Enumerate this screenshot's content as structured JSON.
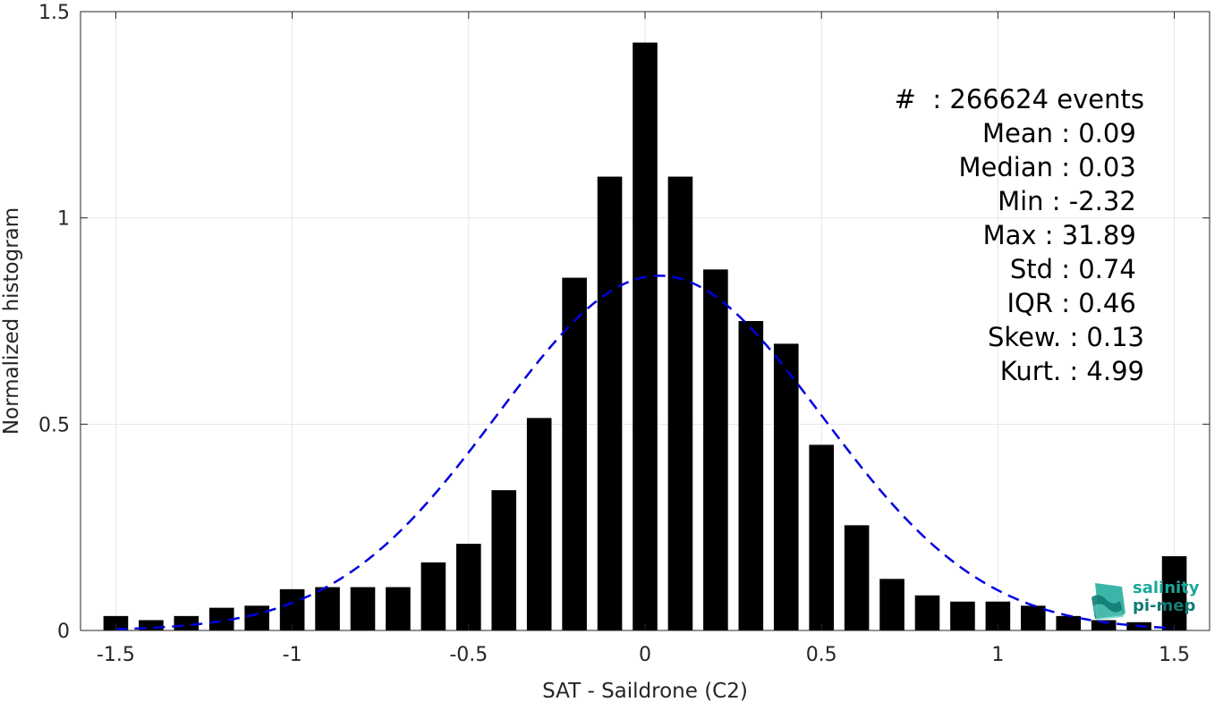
{
  "chart_data": {
    "type": "bar",
    "xlabel": "SAT - Saildrone (C2)",
    "ylabel": "Normalized histogram",
    "xlim": [
      -1.6,
      1.6
    ],
    "ylim": [
      0,
      1.5
    ],
    "xticks": [
      -1.5,
      -1,
      -0.5,
      0,
      0.5,
      1,
      1.5
    ],
    "xtick_labels": [
      "-1.5",
      "-1",
      "-0.5",
      "0",
      "0.5",
      "1",
      "1.5"
    ],
    "yticks": [
      0,
      0.5,
      1,
      1.5
    ],
    "ytick_labels": [
      "0",
      "0.5",
      "1",
      "1.5"
    ],
    "grid": true,
    "bin_width": 0.1,
    "x": [
      -1.5,
      -1.4,
      -1.3,
      -1.2,
      -1.1,
      -1.0,
      -0.9,
      -0.8,
      -0.7,
      -0.6,
      -0.5,
      -0.4,
      -0.3,
      -0.2,
      -0.1,
      0.0,
      0.1,
      0.2,
      0.3,
      0.4,
      0.5,
      0.6,
      0.7,
      0.8,
      0.9,
      1.0,
      1.1,
      1.2,
      1.3,
      1.4,
      1.5
    ],
    "values": [
      0.035,
      0.025,
      0.035,
      0.055,
      0.06,
      0.1,
      0.105,
      0.105,
      0.105,
      0.165,
      0.21,
      0.34,
      0.515,
      0.855,
      1.1,
      1.425,
      1.1,
      0.875,
      0.75,
      0.695,
      0.45,
      0.255,
      0.125,
      0.085,
      0.07,
      0.07,
      0.06,
      0.035,
      0.025,
      0.02,
      0.18
    ],
    "bar_color": "#000000",
    "fit": {
      "style": "dashed",
      "color": "#0000dd",
      "mean": 0.04,
      "std": 0.46,
      "peak": 0.86
    }
  },
  "stats": [
    "#  : 266624 events",
    "Mean : 0.09 ",
    "Median : 0.03 ",
    "Min : -2.32 ",
    "Max : 31.89 ",
    "Std : 0.74 ",
    "IQR : 0.46 ",
    "Skew. : 0.13",
    "Kurt. : 4.99"
  ],
  "logo": {
    "line1": "salinity",
    "line2": "pi-mep",
    "icon": "salinity-wave-icon",
    "color": "#1aa89a"
  }
}
